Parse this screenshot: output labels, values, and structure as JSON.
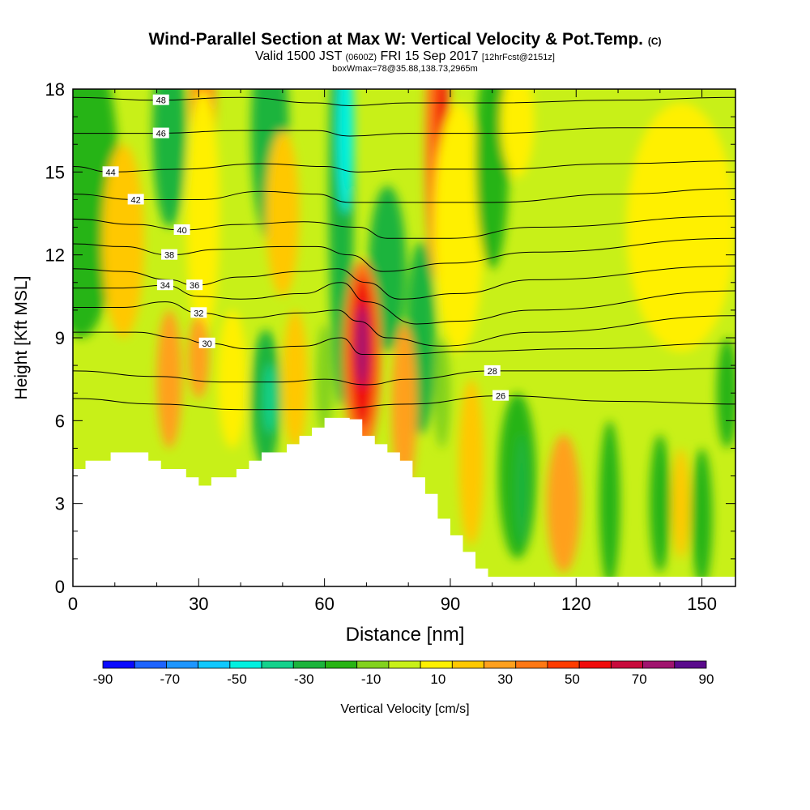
{
  "chart_data": {
    "type": "heatmap",
    "title": "Wind-Parallel Section at Max W: Vertical Velocity & Pot.Temp.",
    "title_mark": "(C)",
    "subtitle_valid": "Valid 1500 JST",
    "subtitle_utc": "(0600Z)",
    "subtitle_date": "FRI 15 Sep 2017",
    "subtitle_fcst": "[12hrFcst@2151z]",
    "subtitle_box": "boxWmax=78@35.88,138.73,2965m",
    "xlabel": "Distance [nm]",
    "ylabel": "Height [Kft MSL]",
    "xlim": [
      0,
      158
    ],
    "ylim": [
      0,
      18
    ],
    "x_ticks": [
      0,
      30,
      60,
      90,
      120,
      150
    ],
    "y_ticks": [
      0,
      3,
      6,
      9,
      12,
      15,
      18
    ],
    "colorbar": {
      "label": "Vertical Velocity [cm/s]",
      "ticks": [
        -90,
        -70,
        -50,
        -30,
        -10,
        10,
        30,
        50,
        70,
        90
      ],
      "bins": [
        {
          "min": -90,
          "max": -80,
          "color": "#0a0aff"
        },
        {
          "min": -80,
          "max": -70,
          "color": "#1e64ff"
        },
        {
          "min": -70,
          "max": -60,
          "color": "#1e96ff"
        },
        {
          "min": -60,
          "max": -50,
          "color": "#10c8ff"
        },
        {
          "min": -50,
          "max": -40,
          "color": "#00f0e0"
        },
        {
          "min": -40,
          "max": -30,
          "color": "#14d28c"
        },
        {
          "min": -30,
          "max": -20,
          "color": "#1cb43c"
        },
        {
          "min": -20,
          "max": -10,
          "color": "#28b414"
        },
        {
          "min": -10,
          "max": 0,
          "color": "#82d21e"
        },
        {
          "min": 0,
          "max": 10,
          "color": "#c8f018"
        },
        {
          "min": 10,
          "max": 20,
          "color": "#fff000"
        },
        {
          "min": 20,
          "max": 30,
          "color": "#ffc800"
        },
        {
          "min": 30,
          "max": 40,
          "color": "#ffa01e"
        },
        {
          "min": 40,
          "max": 50,
          "color": "#ff7814"
        },
        {
          "min": 50,
          "max": 60,
          "color": "#ff3c00"
        },
        {
          "min": 60,
          "max": 70,
          "color": "#f00a0a"
        },
        {
          "min": 70,
          "max": 80,
          "color": "#c80a3c"
        },
        {
          "min": 80,
          "max": 90,
          "color": "#a0146e"
        },
        {
          "min": 90,
          "max": 100,
          "color": "#5a0a8c"
        }
      ]
    },
    "terrain": [
      [
        0,
        4.25
      ],
      [
        3,
        4.25
      ],
      [
        3,
        4.55
      ],
      [
        9,
        4.55
      ],
      [
        9,
        4.85
      ],
      [
        18,
        4.85
      ],
      [
        18,
        4.55
      ],
      [
        21,
        4.55
      ],
      [
        21,
        4.25
      ],
      [
        27,
        4.25
      ],
      [
        27,
        3.95
      ],
      [
        30,
        3.95
      ],
      [
        30,
        3.65
      ],
      [
        33,
        3.65
      ],
      [
        33,
        3.95
      ],
      [
        39,
        3.95
      ],
      [
        39,
        4.25
      ],
      [
        42,
        4.25
      ],
      [
        42,
        4.55
      ],
      [
        45,
        4.55
      ],
      [
        45,
        4.85
      ],
      [
        51,
        4.85
      ],
      [
        51,
        5.15
      ],
      [
        54,
        5.15
      ],
      [
        54,
        5.45
      ],
      [
        57,
        5.45
      ],
      [
        57,
        5.75
      ],
      [
        60,
        5.75
      ],
      [
        60,
        6.1
      ],
      [
        66,
        6.1
      ],
      [
        66,
        6.05
      ],
      [
        69,
        6.05
      ],
      [
        69,
        5.45
      ],
      [
        72,
        5.45
      ],
      [
        72,
        5.15
      ],
      [
        75,
        5.15
      ],
      [
        75,
        4.85
      ],
      [
        78,
        4.85
      ],
      [
        78,
        4.55
      ],
      [
        81,
        4.55
      ],
      [
        81,
        3.95
      ],
      [
        84,
        3.95
      ],
      [
        84,
        3.35
      ],
      [
        87,
        3.35
      ],
      [
        87,
        2.45
      ],
      [
        90,
        2.45
      ],
      [
        90,
        1.85
      ],
      [
        93,
        1.85
      ],
      [
        93,
        1.25
      ],
      [
        96,
        1.25
      ],
      [
        96,
        0.65
      ],
      [
        99,
        0.65
      ],
      [
        99,
        0.35
      ],
      [
        158,
        0.35
      ]
    ],
    "velocity_cells": [
      {
        "x": 2,
        "y": 14.5,
        "w": 18,
        "h": 11,
        "value": -20
      },
      {
        "x": 12,
        "y": 12.5,
        "w": 10,
        "h": 7,
        "value": 20
      },
      {
        "x": 23,
        "y": 16.5,
        "w": 8,
        "h": 7,
        "value": -25
      },
      {
        "x": 31,
        "y": 16.8,
        "w": 6,
        "h": 6,
        "value": 45
      },
      {
        "x": 31,
        "y": 13.5,
        "w": 8,
        "h": 9,
        "value": 15
      },
      {
        "x": 47,
        "y": 16.5,
        "w": 9,
        "h": 8,
        "value": -25
      },
      {
        "x": 50,
        "y": 13.5,
        "w": 8,
        "h": 6,
        "value": 20
      },
      {
        "x": 64,
        "y": 14.5,
        "w": 6,
        "h": 16,
        "value": -25
      },
      {
        "x": 65,
        "y": 16.5,
        "w": 4,
        "h": 6,
        "value": -50
      },
      {
        "x": 75,
        "y": 11.5,
        "w": 9,
        "h": 6,
        "value": -25
      },
      {
        "x": 83,
        "y": 9,
        "w": 7,
        "h": 7,
        "value": -30
      },
      {
        "x": 87,
        "y": 16,
        "w": 6,
        "h": 10,
        "value": 45
      },
      {
        "x": 88,
        "y": 17,
        "w": 3,
        "h": 4,
        "value": 65
      },
      {
        "x": 92,
        "y": 13,
        "w": 12,
        "h": 9,
        "value": 15
      },
      {
        "x": 100,
        "y": 15.5,
        "w": 8,
        "h": 8,
        "value": -15
      },
      {
        "x": 106,
        "y": 16.8,
        "w": 8,
        "h": 4,
        "value": 15
      },
      {
        "x": 145,
        "y": 13,
        "w": 26,
        "h": 9,
        "value": 15
      },
      {
        "x": 23,
        "y": 7.5,
        "w": 6,
        "h": 5,
        "value": 35
      },
      {
        "x": 30,
        "y": 8.3,
        "w": 5,
        "h": 3,
        "value": 30
      },
      {
        "x": 38,
        "y": 7.5,
        "w": 7,
        "h": 5,
        "value": 15
      },
      {
        "x": 46,
        "y": 6.8,
        "w": 7,
        "h": 5,
        "value": -25
      },
      {
        "x": 47,
        "y": 6.8,
        "w": 3,
        "h": 2.5,
        "value": -40
      },
      {
        "x": 53,
        "y": 7.5,
        "w": 6,
        "h": 5,
        "value": 25
      },
      {
        "x": 60,
        "y": 7.5,
        "w": 4,
        "h": 4,
        "value": -10
      },
      {
        "x": 69,
        "y": 8.3,
        "w": 9,
        "h": 7,
        "value": 45
      },
      {
        "x": 69,
        "y": 8.5,
        "w": 6,
        "h": 5.5,
        "value": 65
      },
      {
        "x": 69,
        "y": 8.7,
        "w": 3,
        "h": 3,
        "value": 85
      },
      {
        "x": 79,
        "y": 6.5,
        "w": 6,
        "h": 6,
        "value": 35
      },
      {
        "x": 88,
        "y": 7,
        "w": 4,
        "h": 4,
        "value": -10
      },
      {
        "x": 95,
        "y": 4.5,
        "w": 6,
        "h": 6,
        "value": 25
      },
      {
        "x": 106,
        "y": 4,
        "w": 9,
        "h": 6,
        "value": -15
      },
      {
        "x": 107,
        "y": 3.5,
        "w": 3,
        "h": 4,
        "value": -30
      },
      {
        "x": 117,
        "y": 3,
        "w": 8,
        "h": 5,
        "value": 35
      },
      {
        "x": 128,
        "y": 3,
        "w": 5,
        "h": 6,
        "value": -15
      },
      {
        "x": 140,
        "y": 3,
        "w": 5,
        "h": 5,
        "value": -15
      },
      {
        "x": 145,
        "y": 3,
        "w": 4,
        "h": 4,
        "value": 25
      },
      {
        "x": 150,
        "y": 2.5,
        "w": 5,
        "h": 5,
        "value": -15
      },
      {
        "x": 156,
        "y": 7,
        "w": 5,
        "h": 4,
        "value": -15
      }
    ],
    "theta_contours": [
      {
        "label": "48",
        "label_at": [
          21,
          17.6
        ],
        "points": [
          [
            0,
            17.7
          ],
          [
            20,
            17.6
          ],
          [
            40,
            17.7
          ],
          [
            58,
            17.5
          ],
          [
            66,
            17.4
          ],
          [
            80,
            17.5
          ],
          [
            100,
            17.5
          ],
          [
            130,
            17.6
          ],
          [
            158,
            17.7
          ]
        ]
      },
      {
        "label": "46",
        "label_at": [
          21,
          16.4
        ],
        "points": [
          [
            0,
            16.4
          ],
          [
            20,
            16.4
          ],
          [
            40,
            16.5
          ],
          [
            58,
            16.5
          ],
          [
            66,
            16.3
          ],
          [
            80,
            16.4
          ],
          [
            100,
            16.4
          ],
          [
            130,
            16.6
          ],
          [
            158,
            16.6
          ]
        ]
      },
      {
        "label": "44",
        "label_at": [
          9,
          15.0
        ],
        "points": [
          [
            0,
            15.2
          ],
          [
            9,
            15.0
          ],
          [
            25,
            15.1
          ],
          [
            45,
            15.3
          ],
          [
            60,
            15.2
          ],
          [
            68,
            15.0
          ],
          [
            80,
            15.1
          ],
          [
            100,
            15.1
          ],
          [
            130,
            15.3
          ],
          [
            158,
            15.4
          ]
        ]
      },
      {
        "label": "42",
        "label_at": [
          15,
          14.0
        ],
        "points": [
          [
            0,
            14.2
          ],
          [
            15,
            14.0
          ],
          [
            30,
            14.0
          ],
          [
            45,
            14.3
          ],
          [
            58,
            14.2
          ],
          [
            66,
            13.9
          ],
          [
            80,
            13.9
          ],
          [
            100,
            13.9
          ],
          [
            130,
            14.2
          ],
          [
            158,
            14.4
          ]
        ]
      },
      {
        "label": "40",
        "label_at": [
          26,
          12.9
        ],
        "points": [
          [
            0,
            13.3
          ],
          [
            15,
            13.1
          ],
          [
            26,
            12.9
          ],
          [
            40,
            13.1
          ],
          [
            55,
            13.2
          ],
          [
            68,
            13.0
          ],
          [
            75,
            12.6
          ],
          [
            90,
            12.6
          ],
          [
            110,
            13.0
          ],
          [
            158,
            13.4
          ]
        ]
      },
      {
        "label": "38",
        "label_at": [
          23,
          12.0
        ],
        "points": [
          [
            0,
            12.4
          ],
          [
            12,
            12.3
          ],
          [
            23,
            12.0
          ],
          [
            35,
            12.2
          ],
          [
            50,
            12.3
          ],
          [
            58,
            12.3
          ],
          [
            66,
            12.0
          ],
          [
            74,
            11.4
          ],
          [
            90,
            11.7
          ],
          [
            110,
            12.1
          ],
          [
            158,
            12.6
          ]
        ]
      },
      {
        "label": "36",
        "label_at": [
          29,
          10.9
        ],
        "points": [
          [
            0,
            11.5
          ],
          [
            12,
            11.4
          ],
          [
            23,
            11.1
          ],
          [
            29,
            10.9
          ],
          [
            40,
            11.2
          ],
          [
            55,
            11.4
          ],
          [
            63,
            11.5
          ],
          [
            70,
            11.0
          ],
          [
            78,
            10.4
          ],
          [
            92,
            10.6
          ],
          [
            110,
            11.1
          ],
          [
            158,
            11.6
          ]
        ]
      },
      {
        "label": "34",
        "label_at": [
          22,
          10.9
        ],
        "points": [
          [
            0,
            10.8
          ],
          [
            12,
            10.8
          ],
          [
            22,
            10.9
          ],
          [
            30,
            10.5
          ],
          [
            40,
            10.4
          ],
          [
            55,
            10.6
          ],
          [
            64,
            11.0
          ],
          [
            70,
            10.3
          ],
          [
            82,
            9.5
          ],
          [
            92,
            9.6
          ],
          [
            110,
            10.0
          ],
          [
            158,
            10.7
          ]
        ]
      },
      {
        "label": "32",
        "label_at": [
          30,
          9.9
        ],
        "points": [
          [
            0,
            10.1
          ],
          [
            12,
            10.1
          ],
          [
            22,
            10.3
          ],
          [
            30,
            9.9
          ],
          [
            40,
            9.7
          ],
          [
            55,
            9.9
          ],
          [
            63,
            10.0
          ],
          [
            68,
            9.6
          ],
          [
            75,
            9.0
          ],
          [
            88,
            8.7
          ],
          [
            110,
            9.2
          ],
          [
            158,
            9.8
          ]
        ]
      },
      {
        "label": "30",
        "label_at": [
          32,
          8.8
        ],
        "points": [
          [
            0,
            9.2
          ],
          [
            15,
            9.2
          ],
          [
            25,
            9.0
          ],
          [
            32,
            8.8
          ],
          [
            42,
            8.6
          ],
          [
            55,
            8.7
          ],
          [
            64,
            9.0
          ],
          [
            69,
            8.4
          ],
          [
            78,
            8.4
          ],
          [
            93,
            8.5
          ],
          [
            120,
            8.6
          ],
          [
            158,
            8.8
          ]
        ]
      },
      {
        "label": "28",
        "label_at": [
          100,
          7.8
        ],
        "points": [
          [
            0,
            7.8
          ],
          [
            20,
            7.6
          ],
          [
            35,
            7.4
          ],
          [
            50,
            7.4
          ],
          [
            60,
            7.5
          ],
          [
            70,
            7.3
          ],
          [
            80,
            7.5
          ],
          [
            100,
            7.8
          ],
          [
            130,
            7.8
          ],
          [
            158,
            7.9
          ]
        ]
      },
      {
        "label": "26",
        "label_at": [
          102,
          6.9
        ],
        "points": [
          [
            0,
            6.8
          ],
          [
            20,
            6.6
          ],
          [
            40,
            6.4
          ],
          [
            60,
            6.4
          ],
          [
            80,
            6.6
          ],
          [
            102,
            6.9
          ],
          [
            130,
            6.7
          ],
          [
            158,
            6.6
          ]
        ]
      }
    ]
  }
}
